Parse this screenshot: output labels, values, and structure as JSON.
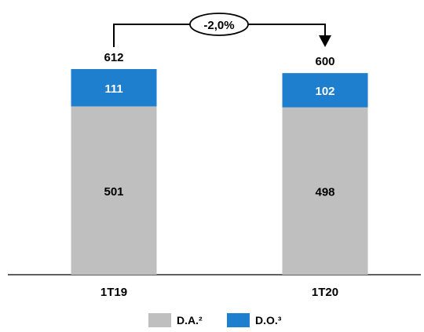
{
  "chart_data": {
    "type": "bar",
    "stacked": true,
    "categories": [
      "1T19",
      "1T20"
    ],
    "series": [
      {
        "name": "D.A.²",
        "values": [
          501,
          498
        ],
        "color": "#BFBFBF"
      },
      {
        "name": "D.O.³",
        "values": [
          111,
          102
        ],
        "color": "#1F7FCF"
      }
    ],
    "totals": [
      "612",
      "600"
    ],
    "segment_labels": [
      [
        "501",
        "111"
      ],
      [
        "498",
        "102"
      ]
    ],
    "annotation": {
      "text": "-2,0%",
      "from": "1T19",
      "to": "1T20"
    },
    "legend_position": "bottom",
    "grid": false,
    "ylim": [
      0,
      612
    ]
  }
}
